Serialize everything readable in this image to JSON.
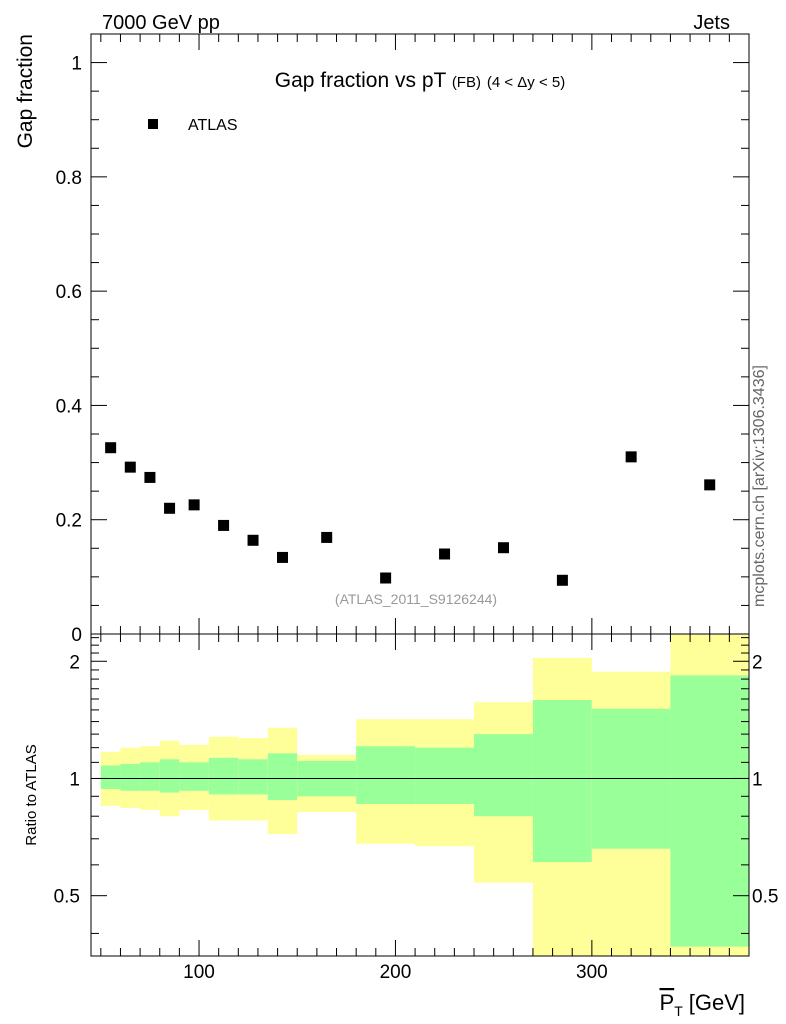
{
  "header": {
    "left": "7000 GeV pp",
    "right": "Jets"
  },
  "side_label": "mcplots.cern.ch [arXiv:1306.3436]",
  "colors": {
    "yellow_band": "#ffff99",
    "green_band": "#99ff99",
    "marker": "#000000",
    "watermark": "#999999"
  },
  "chart_data": [
    {
      "type": "scatter",
      "title_main": "Gap fraction vs pT",
      "title_small": "(FB)",
      "title_range": "(4 < Δy < 5)",
      "ylabel": "Gap fraction",
      "ylim": [
        0,
        1.05
      ],
      "xlim": [
        45,
        380
      ],
      "y_ticks": [
        0,
        0.2,
        0.4,
        0.6,
        0.8,
        1
      ],
      "y_tick_labels": [
        "0",
        "0.2",
        "0.4",
        "0.6",
        "0.8",
        "1"
      ],
      "legend": {
        "label": "ATLAS",
        "placement": "top-left"
      },
      "watermark": "(ATLAS_2011_S9126244)",
      "series": [
        {
          "name": "ATLAS",
          "x": [
            55,
            65,
            75,
            85,
            97.5,
            112.5,
            127.5,
            142.5,
            165,
            195,
            225,
            255,
            285,
            320,
            360
          ],
          "y": [
            0.326,
            0.292,
            0.274,
            0.22,
            0.226,
            0.19,
            0.164,
            0.134,
            0.169,
            0.098,
            0.14,
            0.151,
            0.094,
            0.31,
            0.261
          ]
        }
      ]
    },
    {
      "type": "area",
      "ylabel": "Ratio to ATLAS",
      "xlabel_symbol": "P",
      "xlabel_sub": "T",
      "xlabel_unit": "[GeV]",
      "ylim": [
        0.35,
        2.35
      ],
      "xlim": [
        45,
        380
      ],
      "x_ticks": [
        100,
        200,
        300
      ],
      "x_tick_labels": [
        "100",
        "200",
        "300"
      ],
      "y_ticks": [
        0.5,
        1,
        2
      ],
      "y_tick_labels": [
        "0.5",
        "1",
        "2"
      ],
      "reference_line": 1,
      "bins": [
        {
          "lo": 50,
          "hi": 60,
          "yellow": [
            0.85,
            1.17
          ],
          "green": [
            0.94,
            1.08
          ]
        },
        {
          "lo": 60,
          "hi": 70,
          "yellow": [
            0.84,
            1.2
          ],
          "green": [
            0.93,
            1.09
          ]
        },
        {
          "lo": 70,
          "hi": 80,
          "yellow": [
            0.83,
            1.21
          ],
          "green": [
            0.93,
            1.1
          ]
        },
        {
          "lo": 80,
          "hi": 90,
          "yellow": [
            0.8,
            1.25
          ],
          "green": [
            0.92,
            1.12
          ]
        },
        {
          "lo": 90,
          "hi": 105,
          "yellow": [
            0.83,
            1.22
          ],
          "green": [
            0.93,
            1.1
          ]
        },
        {
          "lo": 105,
          "hi": 120,
          "yellow": [
            0.78,
            1.28
          ],
          "green": [
            0.91,
            1.13
          ]
        },
        {
          "lo": 120,
          "hi": 135,
          "yellow": [
            0.78,
            1.27
          ],
          "green": [
            0.91,
            1.12
          ]
        },
        {
          "lo": 135,
          "hi": 150,
          "yellow": [
            0.72,
            1.35
          ],
          "green": [
            0.88,
            1.16
          ]
        },
        {
          "lo": 150,
          "hi": 180,
          "yellow": [
            0.82,
            1.15
          ],
          "green": [
            0.9,
            1.11
          ]
        },
        {
          "lo": 180,
          "hi": 210,
          "yellow": [
            0.68,
            1.42
          ],
          "green": [
            0.86,
            1.21
          ]
        },
        {
          "lo": 210,
          "hi": 240,
          "yellow": [
            0.67,
            1.42
          ],
          "green": [
            0.86,
            1.2
          ]
        },
        {
          "lo": 240,
          "hi": 270,
          "yellow": [
            0.54,
            1.57
          ],
          "green": [
            0.8,
            1.3
          ]
        },
        {
          "lo": 270,
          "hi": 300,
          "yellow": [
            0.35,
            2.04
          ],
          "green": [
            0.61,
            1.59
          ]
        },
        {
          "lo": 300,
          "hi": 340,
          "yellow": [
            0.35,
            1.88
          ],
          "green": [
            0.66,
            1.51
          ]
        },
        {
          "lo": 340,
          "hi": 380,
          "yellow": [
            0.35,
            2.35
          ],
          "green": [
            0.37,
            1.84
          ]
        }
      ]
    }
  ]
}
